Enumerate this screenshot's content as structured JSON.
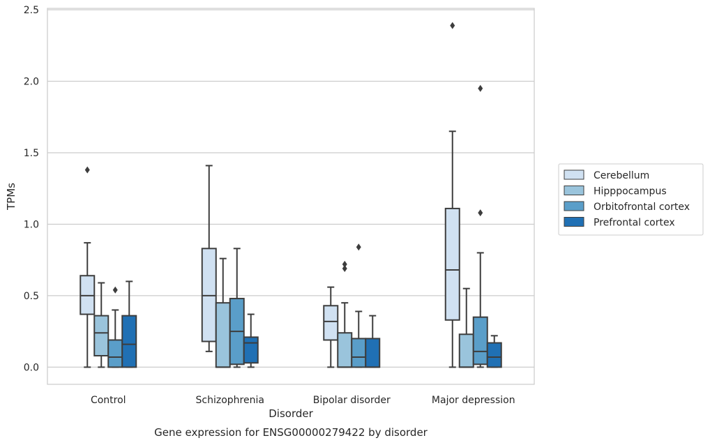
{
  "chart_data": {
    "type": "box",
    "caption": "Gene expression for ENSG00000279422 by disorder",
    "xlabel": "Disorder",
    "ylabel": "TPMs",
    "categories": [
      "Control",
      "Schizophrenia",
      "Bipolar disorder",
      "Major depression"
    ],
    "ylim": [
      -0.12,
      2.51
    ],
    "yticks": [
      "0.0",
      "0.5",
      "1.0",
      "1.5",
      "2.0",
      "2.5"
    ],
    "ytick_values": [
      0,
      0.5,
      1.0,
      1.5,
      2.0,
      2.5
    ],
    "grid": true,
    "legend_position": "right",
    "series": [
      {
        "name": "Cerebellum",
        "color": "#d0e1f2",
        "boxes": [
          {
            "whislo": 0.0,
            "q1": 0.37,
            "med": 0.5,
            "q3": 0.64,
            "whishi": 0.87,
            "fliers": [
              1.38
            ]
          },
          {
            "whislo": 0.11,
            "q1": 0.18,
            "med": 0.5,
            "q3": 0.83,
            "whishi": 1.41,
            "fliers": []
          },
          {
            "whislo": 0.0,
            "q1": 0.19,
            "med": 0.32,
            "q3": 0.43,
            "whishi": 0.56,
            "fliers": []
          },
          {
            "whislo": 0.0,
            "q1": 0.33,
            "med": 0.68,
            "q3": 1.11,
            "whishi": 1.65,
            "fliers": [
              2.39
            ]
          }
        ]
      },
      {
        "name": "Hipppocampus",
        "color": "#9ac4dc",
        "boxes": [
          {
            "whislo": 0.0,
            "q1": 0.08,
            "med": 0.24,
            "q3": 0.36,
            "whishi": 0.59,
            "fliers": []
          },
          {
            "whislo": 0.0,
            "q1": 0.0,
            "med": 0.0,
            "q3": 0.45,
            "whishi": 0.76,
            "fliers": []
          },
          {
            "whislo": 0.0,
            "q1": 0.0,
            "med": 0.0,
            "q3": 0.24,
            "whishi": 0.45,
            "fliers": [
              0.69,
              0.72
            ]
          },
          {
            "whislo": 0.0,
            "q1": 0.0,
            "med": 0.0,
            "q3": 0.23,
            "whishi": 0.55,
            "fliers": []
          }
        ]
      },
      {
        "name": "Orbitofrontal cortex",
        "color": "#5a9ec9",
        "boxes": [
          {
            "whislo": 0.0,
            "q1": 0.0,
            "med": 0.07,
            "q3": 0.19,
            "whishi": 0.4,
            "fliers": [
              0.54
            ]
          },
          {
            "whislo": 0.0,
            "q1": 0.02,
            "med": 0.25,
            "q3": 0.48,
            "whishi": 0.83,
            "fliers": []
          },
          {
            "whislo": 0.0,
            "q1": 0.0,
            "med": 0.07,
            "q3": 0.2,
            "whishi": 0.39,
            "fliers": [
              0.84
            ]
          },
          {
            "whislo": 0.0,
            "q1": 0.02,
            "med": 0.11,
            "q3": 0.35,
            "whishi": 0.8,
            "fliers": [
              1.08,
              1.95
            ]
          }
        ]
      },
      {
        "name": "Prefrontal cortex",
        "color": "#2070b4",
        "boxes": [
          {
            "whislo": 0.0,
            "q1": 0.0,
            "med": 0.16,
            "q3": 0.36,
            "whishi": 0.6,
            "fliers": []
          },
          {
            "whislo": 0.0,
            "q1": 0.03,
            "med": 0.17,
            "q3": 0.21,
            "whishi": 0.37,
            "fliers": []
          },
          {
            "whislo": 0.0,
            "q1": 0.0,
            "med": 0.0,
            "q3": 0.2,
            "whishi": 0.36,
            "fliers": []
          },
          {
            "whislo": 0.0,
            "q1": 0.0,
            "med": 0.07,
            "q3": 0.17,
            "whishi": 0.22,
            "fliers": []
          }
        ]
      }
    ]
  }
}
